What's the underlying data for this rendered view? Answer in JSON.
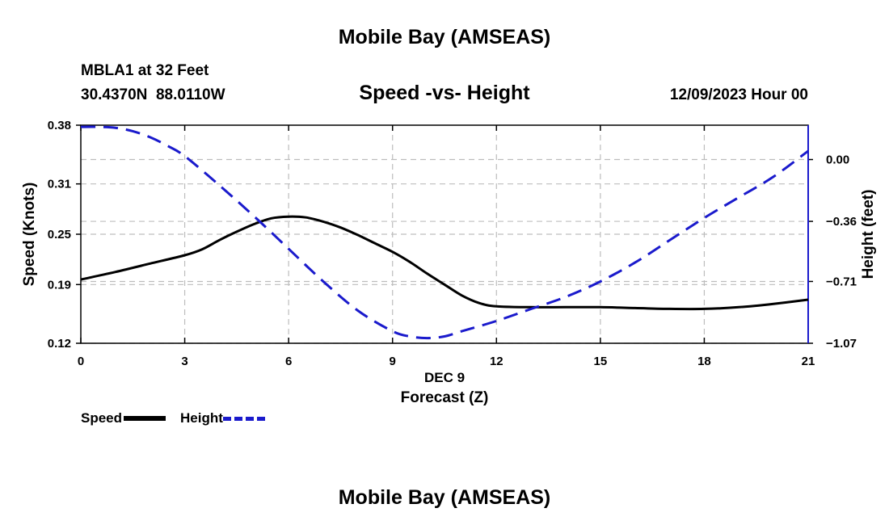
{
  "page": {
    "title_top": "Mobile Bay (AMSEAS)",
    "title_bottom": "Mobile Bay (AMSEAS)",
    "station": "MBLA1 at 32 Feet",
    "coords": "30.4370N  88.0110W",
    "timestamp": "12/09/2023 Hour 00"
  },
  "legend": [
    {
      "label": "Speed",
      "color": "#000000",
      "style": "solid"
    },
    {
      "label": "Height",
      "color": "#1a1acc",
      "style": "dashed"
    }
  ],
  "chart_data": {
    "type": "line",
    "title": "Speed -vs- Height",
    "xlabel": "Forecast (Z)",
    "xsublabel": "DEC 9",
    "ylabel": "Speed (Knots)",
    "y2label": "Height (feet)",
    "xlim": [
      0,
      21
    ],
    "ylim": [
      0.12,
      0.38
    ],
    "y2lim": [
      -1.07,
      0.2
    ],
    "xticks": [
      0,
      3,
      6,
      9,
      12,
      15,
      18,
      21
    ],
    "xtick_labels": [
      "0",
      "3",
      "6",
      "9",
      "12",
      "15",
      "18",
      "21"
    ],
    "yticks": [
      0.38,
      0.31,
      0.25,
      0.19,
      0.12
    ],
    "ytick_labels": [
      "0.38",
      "0.31",
      "0.25",
      "0.19",
      "0.12"
    ],
    "y2ticks": [
      0.0,
      -0.36,
      -0.71,
      -1.07
    ],
    "y2tick_labels": [
      "0.00",
      "−0.36",
      "−0.71",
      "−1.07"
    ],
    "series": [
      {
        "name": "Speed",
        "axis": "left",
        "color": "#000000",
        "dashed": false,
        "x": [
          0,
          1,
          2,
          3,
          3.5,
          4,
          4.5,
          5,
          5.5,
          6,
          6.5,
          7,
          7.5,
          8,
          8.5,
          9,
          9.5,
          10,
          10.5,
          11,
          11.5,
          12,
          13,
          14,
          15,
          16,
          17,
          18,
          19,
          20,
          21
        ],
        "values": [
          0.196,
          0.205,
          0.215,
          0.225,
          0.232,
          0.243,
          0.253,
          0.262,
          0.269,
          0.271,
          0.27,
          0.265,
          0.258,
          0.249,
          0.239,
          0.229,
          0.217,
          0.203,
          0.19,
          0.177,
          0.168,
          0.164,
          0.163,
          0.163,
          0.163,
          0.162,
          0.161,
          0.161,
          0.163,
          0.167,
          0.172
        ]
      },
      {
        "name": "Height",
        "axis": "right",
        "color": "#1a1acc",
        "dashed": true,
        "x": [
          0,
          0.5,
          1,
          1.5,
          2,
          2.5,
          3,
          4,
          5,
          6,
          7,
          8,
          9,
          9.5,
          10,
          10.5,
          11,
          12,
          13,
          14,
          15,
          16,
          17,
          18,
          19,
          20,
          21
        ],
        "values": [
          0.19,
          0.19,
          0.185,
          0.165,
          0.13,
          0.08,
          0.02,
          -0.15,
          -0.33,
          -0.52,
          -0.71,
          -0.88,
          -1.0,
          -1.03,
          -1.04,
          -1.03,
          -1.0,
          -0.94,
          -0.87,
          -0.8,
          -0.71,
          -0.6,
          -0.47,
          -0.34,
          -0.22,
          -0.1,
          0.05
        ]
      }
    ]
  }
}
